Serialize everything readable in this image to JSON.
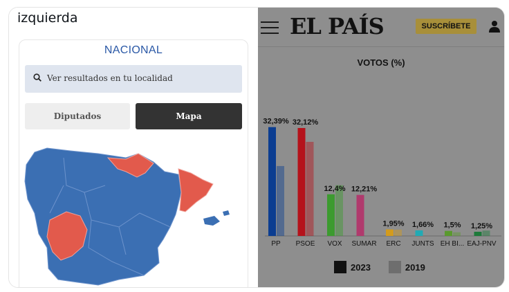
{
  "tweet": {
    "text": "izquierda"
  },
  "results_panel": {
    "heading": "NACIONAL",
    "search_placeholder": "Ver resultados en tu localidad",
    "tabs": [
      {
        "label": "Diputados",
        "active": false
      },
      {
        "label": "Mapa",
        "active": true
      }
    ],
    "map_colors": {
      "pp": "#3b6fb3",
      "psoe": "#e25a4c"
    }
  },
  "news_header": {
    "menu_icon": "hamburger-icon",
    "logo": "EL PAÍS",
    "subscribe_label": "SUSCRÍBETE",
    "user_icon": "user-icon"
  },
  "chart_data": {
    "type": "bar",
    "title": "VOTOS (%)",
    "categories": [
      "PP",
      "PSOE",
      "VOX",
      "SUMAR",
      "ERC",
      "JUNTS",
      "EH BI...",
      "EAJ-PNV"
    ],
    "value_labels": [
      "32,39%",
      "32,12%",
      "12,4%",
      "12,21%",
      "1,95%",
      "1,66%",
      "1,5%",
      "1,25%"
    ],
    "series": [
      {
        "name": "2023",
        "values": [
          32.39,
          32.12,
          12.4,
          12.21,
          1.95,
          1.66,
          1.5,
          1.25
        ]
      },
      {
        "name": "2019",
        "values": [
          20.8,
          28.0,
          15.1,
          null,
          1.9,
          null,
          1.1,
          1.6
        ]
      }
    ],
    "party_colors": [
      "#0b3d91",
      "#b5121b",
      "#3c9b2f",
      "#b03a6d",
      "#d39b1c",
      "#21aab4",
      "#5a9a2e",
      "#1d7a3a"
    ],
    "ylim": [
      0,
      35
    ],
    "legend": [
      {
        "label": "2023",
        "color": "#111111"
      },
      {
        "label": "2019",
        "color": "#6e6e6e"
      }
    ],
    "legend_position": "bottom"
  }
}
